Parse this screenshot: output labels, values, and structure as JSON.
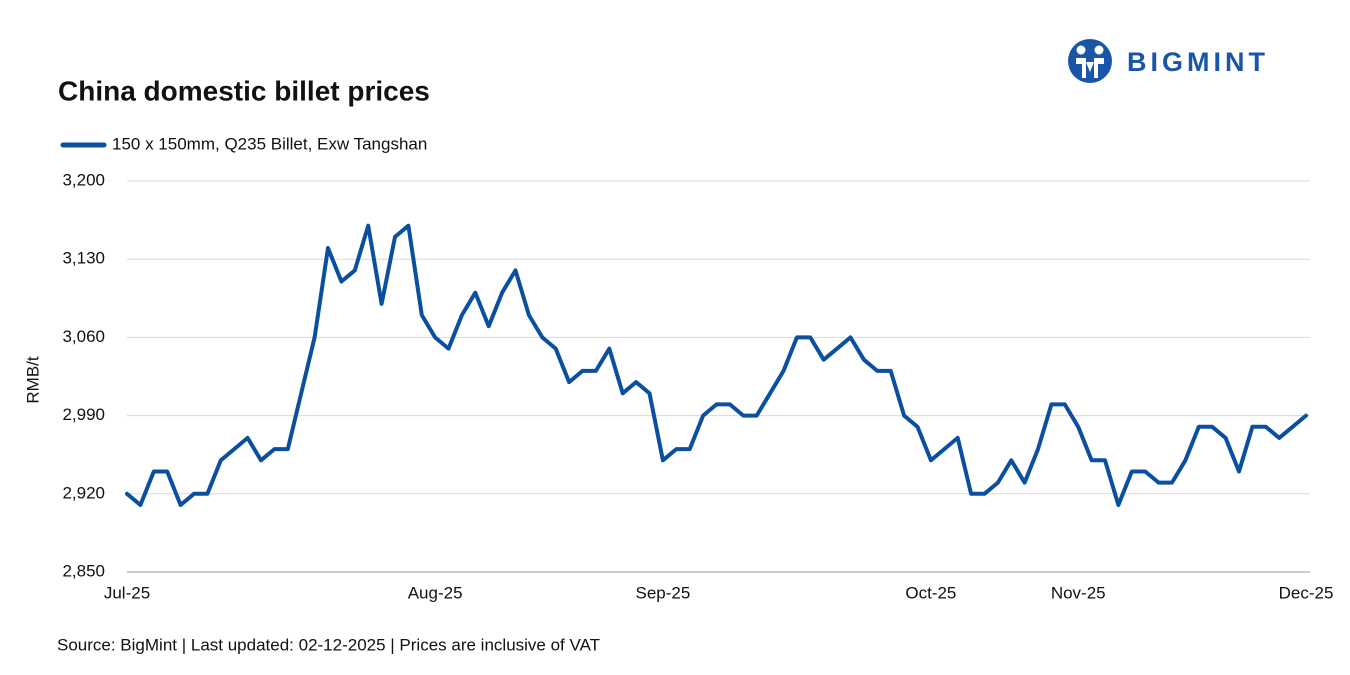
{
  "logo": "BIGMINT",
  "chart_data": {
    "type": "line",
    "title": "China domestic billet prices",
    "y_label": "RMB/t",
    "source": "Source: BigMint | Last updated: 02-12-2025 | Prices are inclusive of VAT",
    "categories": [
      "Jul-25",
      null,
      null,
      null,
      null,
      null,
      null,
      null,
      null,
      null,
      null,
      null,
      null,
      null,
      null,
      null,
      null,
      null,
      null,
      null,
      null,
      null,
      null,
      "Aug-25",
      null,
      null,
      null,
      null,
      null,
      null,
      null,
      null,
      null,
      null,
      null,
      null,
      null,
      null,
      null,
      null,
      "Sep-25",
      null,
      null,
      null,
      null,
      null,
      null,
      null,
      null,
      null,
      null,
      null,
      null,
      null,
      null,
      null,
      null,
      null,
      null,
      null,
      "Oct-25",
      null,
      null,
      null,
      null,
      null,
      null,
      null,
      null,
      null,
      null,
      "Nov-25",
      null,
      null,
      null,
      null,
      null,
      null,
      null,
      null,
      null,
      null,
      null,
      null,
      null,
      null,
      null,
      null,
      "Dec-25"
    ],
    "series": [
      {
        "name": "150 x 150mm, Q235 Billet, Exw Tangshan",
        "color": "#0b4fa0",
        "values": [
          2920,
          2910,
          2940,
          2940,
          2910,
          2920,
          2920,
          2950,
          2960,
          2970,
          2950,
          2960,
          2960,
          3010,
          3060,
          3140,
          3110,
          3120,
          3160,
          3090,
          3150,
          3160,
          3080,
          3060,
          3050,
          3080,
          3100,
          3070,
          3100,
          3120,
          3080,
          3060,
          3050,
          3020,
          3030,
          3030,
          3050,
          3010,
          3020,
          3010,
          2950,
          2960,
          2960,
          2990,
          3000,
          3000,
          2990,
          2990,
          3010,
          3030,
          3060,
          3060,
          3040,
          3050,
          3060,
          3040,
          3030,
          3030,
          2990,
          2980,
          2950,
          2960,
          2970,
          2920,
          2920,
          2930,
          2950,
          2930,
          2960,
          3000,
          3000,
          2980,
          2950,
          2950,
          2910,
          2940,
          2940,
          2930,
          2930,
          2950,
          2980,
          2980,
          2970,
          2940,
          2980,
          2980,
          2970,
          2980,
          2990
        ]
      }
    ],
    "ylim": [
      2850,
      3200
    ],
    "yticks": [
      {
        "value": 2850,
        "label": "2,850"
      },
      {
        "value": 2920,
        "label": "2,920"
      },
      {
        "value": 2990,
        "label": "2,990"
      },
      {
        "value": 3060,
        "label": "3,060"
      },
      {
        "value": 3130,
        "label": "3,130"
      },
      {
        "value": 3200,
        "label": "3,200"
      }
    ],
    "grid": true
  }
}
